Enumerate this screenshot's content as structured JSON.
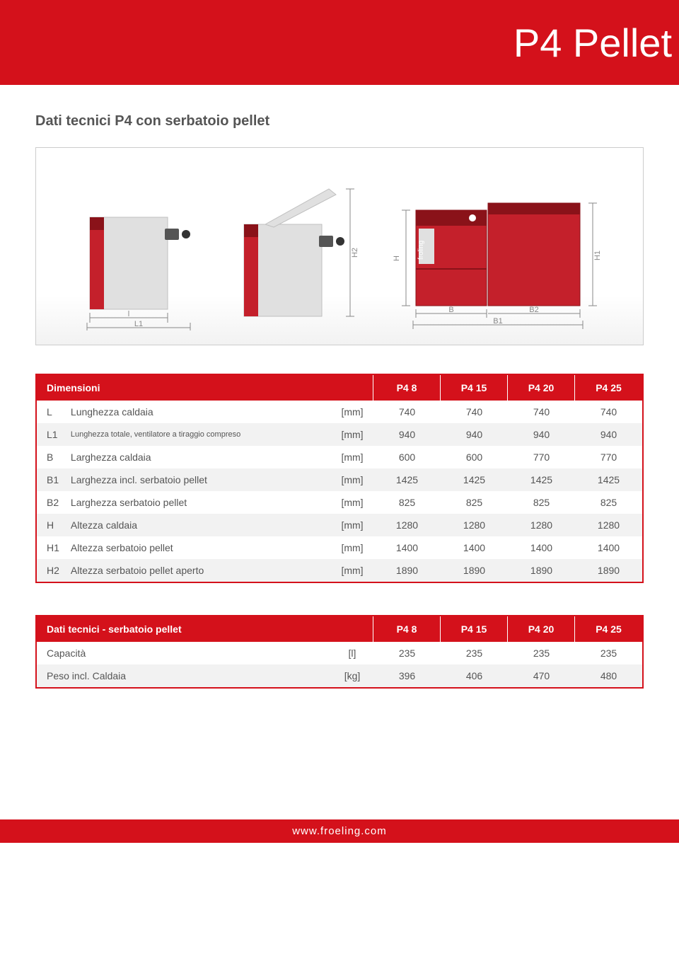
{
  "header": {
    "title": "P4 Pellet"
  },
  "section_title": "Dati tecnici P4 con serbatoio pellet",
  "diagram": {
    "labels": {
      "l": "l",
      "L1": "L1",
      "H2": "H2",
      "H": "H",
      "B": "B",
      "B1": "B1",
      "B2": "B2",
      "H1": "H1"
    },
    "colors": {
      "red": "#c4202b",
      "darkred": "#8a1219",
      "grey": "#e0e0e0",
      "darkgrey": "#bfbfbf",
      "line": "#888888"
    }
  },
  "table1": {
    "header": [
      "Dimensioni",
      "P4 8",
      "P4 15",
      "P4 20",
      "P4 25"
    ],
    "rows": [
      {
        "sym": "L",
        "desc": "Lunghezza caldaia",
        "small": false,
        "unit": "[mm]",
        "vals": [
          "740",
          "740",
          "740",
          "740"
        ]
      },
      {
        "sym": "L1",
        "desc": "Lunghezza totale, ventilatore a tiraggio compreso",
        "small": true,
        "unit": "[mm]",
        "vals": [
          "940",
          "940",
          "940",
          "940"
        ]
      },
      {
        "sym": "B",
        "desc": "Larghezza caldaia",
        "small": false,
        "unit": "[mm]",
        "vals": [
          "600",
          "600",
          "770",
          "770"
        ]
      },
      {
        "sym": "B1",
        "desc": "Larghezza incl. serbatoio pellet",
        "small": false,
        "unit": "[mm]",
        "vals": [
          "1425",
          "1425",
          "1425",
          "1425"
        ]
      },
      {
        "sym": "B2",
        "desc": "Larghezza serbatoio pellet",
        "small": false,
        "unit": "[mm]",
        "vals": [
          "825",
          "825",
          "825",
          "825"
        ]
      },
      {
        "sym": "H",
        "desc": "Altezza caldaia",
        "small": false,
        "unit": "[mm]",
        "vals": [
          "1280",
          "1280",
          "1280",
          "1280"
        ]
      },
      {
        "sym": "H1",
        "desc": "Altezza serbatoio pellet",
        "small": false,
        "unit": "[mm]",
        "vals": [
          "1400",
          "1400",
          "1400",
          "1400"
        ]
      },
      {
        "sym": "H2",
        "desc": "Altezza serbatoio pellet aperto",
        "small": false,
        "unit": "[mm]",
        "vals": [
          "1890",
          "1890",
          "1890",
          "1890"
        ]
      }
    ]
  },
  "table2": {
    "header": [
      "Dati tecnici - serbatoio pellet",
      "P4 8",
      "P4 15",
      "P4 20",
      "P4 25"
    ],
    "rows": [
      {
        "desc": "Capacità",
        "unit": "[l]",
        "vals": [
          "235",
          "235",
          "235",
          "235"
        ]
      },
      {
        "desc": "Peso incl. Caldaia",
        "unit": "[kg]",
        "vals": [
          "396",
          "406",
          "470",
          "480"
        ]
      }
    ]
  },
  "footer": {
    "url": "www.froeling.com"
  }
}
